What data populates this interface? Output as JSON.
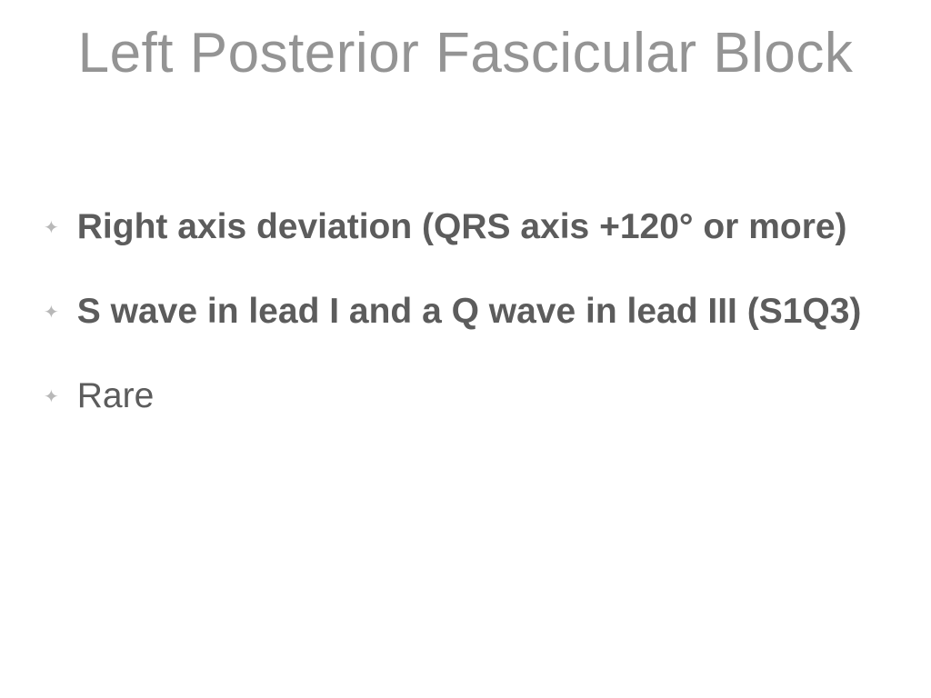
{
  "slide": {
    "title": "Left Posterior Fascicular Block",
    "bullets": [
      {
        "text": "Right axis deviation (QRS axis +120° or more)",
        "bold": true
      },
      {
        "text": "S wave in lead I and a Q wave in lead III (S1Q3)",
        "bold": true
      },
      {
        "text": "Rare",
        "bold": false
      }
    ],
    "colors": {
      "title": "#949494",
      "bullet_text": "#5c5c5c",
      "bullet_marker": "#b8b8b8",
      "background": "#ffffff"
    },
    "fonts": {
      "title_size": 62,
      "bullet_size": 39
    }
  }
}
